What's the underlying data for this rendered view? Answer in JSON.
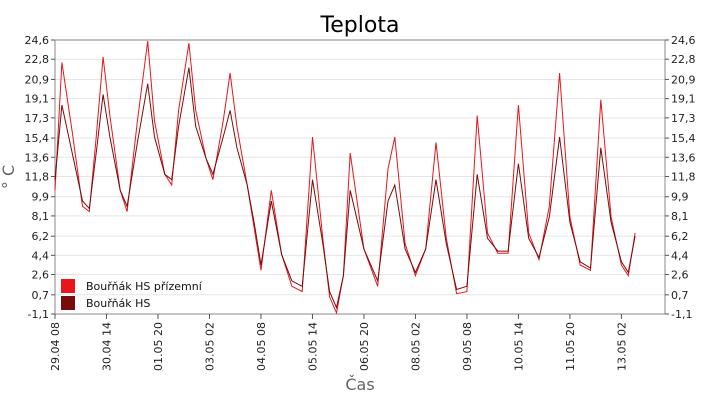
{
  "chart_data": {
    "type": "line",
    "title": "Teplota",
    "xlabel": "Čas",
    "ylabel": "° C",
    "ylim": [
      -1.1,
      24.6
    ],
    "yticks": [
      "-1,1",
      "0,7",
      "2,6",
      "4,4",
      "6,2",
      "8,1",
      "9,9",
      "11,8",
      "13,6",
      "15,4",
      "17,3",
      "19,1",
      "20,9",
      "22,8",
      "24,6"
    ],
    "xticks": [
      "29.04 08",
      "30.04 14",
      "01.05 20",
      "03.05 02",
      "04.05 08",
      "05.05 14",
      "06.05 20",
      "08.05 02",
      "09.05 08",
      "10.05 14",
      "11.05 20",
      "13.05 02"
    ],
    "grid": true,
    "legend_position": "bottom-left",
    "series": [
      {
        "name": "Bouřňák HS přízemní",
        "color": "#e8151b",
        "points": [
          [
            "29.04 08",
            10.5
          ],
          [
            "29.04 12",
            22.5
          ],
          [
            "29.04 18",
            16.0
          ],
          [
            "30.04 00",
            9.0
          ],
          [
            "30.04 04",
            8.5
          ],
          [
            "30.04 08",
            15.5
          ],
          [
            "30.04 12",
            23.0
          ],
          [
            "30.04 16",
            17.5
          ],
          [
            "30.04 22",
            10.5
          ],
          [
            "01.05 02",
            8.5
          ],
          [
            "01.05 08",
            17.0
          ],
          [
            "01.05 14",
            24.5
          ],
          [
            "01.05 18",
            17.0
          ],
          [
            "02.05 00",
            12.0
          ],
          [
            "02.05 04",
            11.0
          ],
          [
            "02.05 08",
            18.0
          ],
          [
            "02.05 14",
            24.3
          ],
          [
            "02.05 18",
            18.0
          ],
          [
            "03.05 00",
            13.5
          ],
          [
            "03.05 04",
            11.5
          ],
          [
            "03.05 10",
            17.0
          ],
          [
            "03.05 14",
            21.5
          ],
          [
            "03.05 18",
            16.5
          ],
          [
            "04.05 00",
            11.0
          ],
          [
            "04.05 04",
            7.0
          ],
          [
            "04.05 08",
            3.0
          ],
          [
            "04.05 14",
            10.5
          ],
          [
            "04.05 20",
            4.5
          ],
          [
            "05.05 02",
            1.5
          ],
          [
            "05.05 08",
            1.0
          ],
          [
            "05.05 14",
            15.5
          ],
          [
            "05.05 20",
            6.0
          ],
          [
            "06.05 00",
            0.5
          ],
          [
            "06.05 04",
            -1.0
          ],
          [
            "06.05 08",
            2.5
          ],
          [
            "06.05 12",
            14.0
          ],
          [
            "06.05 20",
            5.0
          ],
          [
            "07.05 04",
            1.5
          ],
          [
            "07.05 10",
            12.5
          ],
          [
            "07.05 14",
            15.5
          ],
          [
            "07.05 20",
            5.5
          ],
          [
            "08.05 02",
            2.5
          ],
          [
            "08.05 08",
            5.0
          ],
          [
            "08.05 14",
            15.0
          ],
          [
            "08.05 20",
            6.0
          ],
          [
            "09.05 02",
            0.8
          ],
          [
            "09.05 08",
            1.0
          ],
          [
            "09.05 14",
            17.5
          ],
          [
            "09.05 20",
            6.5
          ],
          [
            "10.05 02",
            4.6
          ],
          [
            "10.05 08",
            4.6
          ],
          [
            "10.05 14",
            18.5
          ],
          [
            "10.05 20",
            6.5
          ],
          [
            "11.05 02",
            4.0
          ],
          [
            "11.05 08",
            9.0
          ],
          [
            "11.05 14",
            21.5
          ],
          [
            "11.05 20",
            8.0
          ],
          [
            "12.05 02",
            3.5
          ],
          [
            "12.05 08",
            3.0
          ],
          [
            "12.05 14",
            19.0
          ],
          [
            "12.05 20",
            8.0
          ],
          [
            "13.05 02",
            3.5
          ],
          [
            "13.05 06",
            2.5
          ],
          [
            "13.05 10",
            6.5
          ]
        ]
      },
      {
        "name": "Bouřňák HS",
        "color": "#7a0b0b",
        "points": [
          [
            "29.04 08",
            11.5
          ],
          [
            "29.04 12",
            18.5
          ],
          [
            "29.04 18",
            14.0
          ],
          [
            "30.04 00",
            9.5
          ],
          [
            "30.04 04",
            8.8
          ],
          [
            "30.04 08",
            14.0
          ],
          [
            "30.04 12",
            19.5
          ],
          [
            "30.04 16",
            15.5
          ],
          [
            "30.04 22",
            10.5
          ],
          [
            "01.05 02",
            9.0
          ],
          [
            "01.05 08",
            15.0
          ],
          [
            "01.05 14",
            20.5
          ],
          [
            "01.05 18",
            15.5
          ],
          [
            "02.05 00",
            12.0
          ],
          [
            "02.05 04",
            11.5
          ],
          [
            "02.05 08",
            16.5
          ],
          [
            "02.05 14",
            22.0
          ],
          [
            "02.05 18",
            16.5
          ],
          [
            "03.05 00",
            13.5
          ],
          [
            "03.05 04",
            12.0
          ],
          [
            "03.05 10",
            15.5
          ],
          [
            "03.05 14",
            18.0
          ],
          [
            "03.05 18",
            14.5
          ],
          [
            "04.05 00",
            11.0
          ],
          [
            "04.05 04",
            7.5
          ],
          [
            "04.05 08",
            3.5
          ],
          [
            "04.05 14",
            9.5
          ],
          [
            "04.05 20",
            4.5
          ],
          [
            "05.05 02",
            2.0
          ],
          [
            "05.05 08",
            1.5
          ],
          [
            "05.05 14",
            11.5
          ],
          [
            "05.05 20",
            5.5
          ],
          [
            "06.05 00",
            1.0
          ],
          [
            "06.05 04",
            -0.5
          ],
          [
            "06.05 08",
            2.5
          ],
          [
            "06.05 12",
            10.5
          ],
          [
            "06.05 20",
            5.0
          ],
          [
            "07.05 04",
            2.0
          ],
          [
            "07.05 10",
            9.5
          ],
          [
            "07.05 14",
            11.0
          ],
          [
            "07.05 20",
            5.0
          ],
          [
            "08.05 02",
            2.8
          ],
          [
            "08.05 08",
            5.0
          ],
          [
            "08.05 14",
            11.5
          ],
          [
            "08.05 20",
            5.5
          ],
          [
            "09.05 02",
            1.2
          ],
          [
            "09.05 08",
            1.5
          ],
          [
            "09.05 14",
            12.0
          ],
          [
            "09.05 20",
            6.0
          ],
          [
            "10.05 02",
            4.8
          ],
          [
            "10.05 08",
            4.8
          ],
          [
            "10.05 14",
            13.0
          ],
          [
            "10.05 20",
            6.0
          ],
          [
            "11.05 02",
            4.2
          ],
          [
            "11.05 08",
            8.0
          ],
          [
            "11.05 14",
            15.5
          ],
          [
            "11.05 20",
            7.5
          ],
          [
            "12.05 02",
            3.8
          ],
          [
            "12.05 08",
            3.2
          ],
          [
            "12.05 14",
            14.5
          ],
          [
            "12.05 20",
            7.5
          ],
          [
            "13.05 02",
            3.8
          ],
          [
            "13.05 06",
            2.8
          ],
          [
            "13.05 10",
            6.2
          ]
        ]
      }
    ]
  }
}
